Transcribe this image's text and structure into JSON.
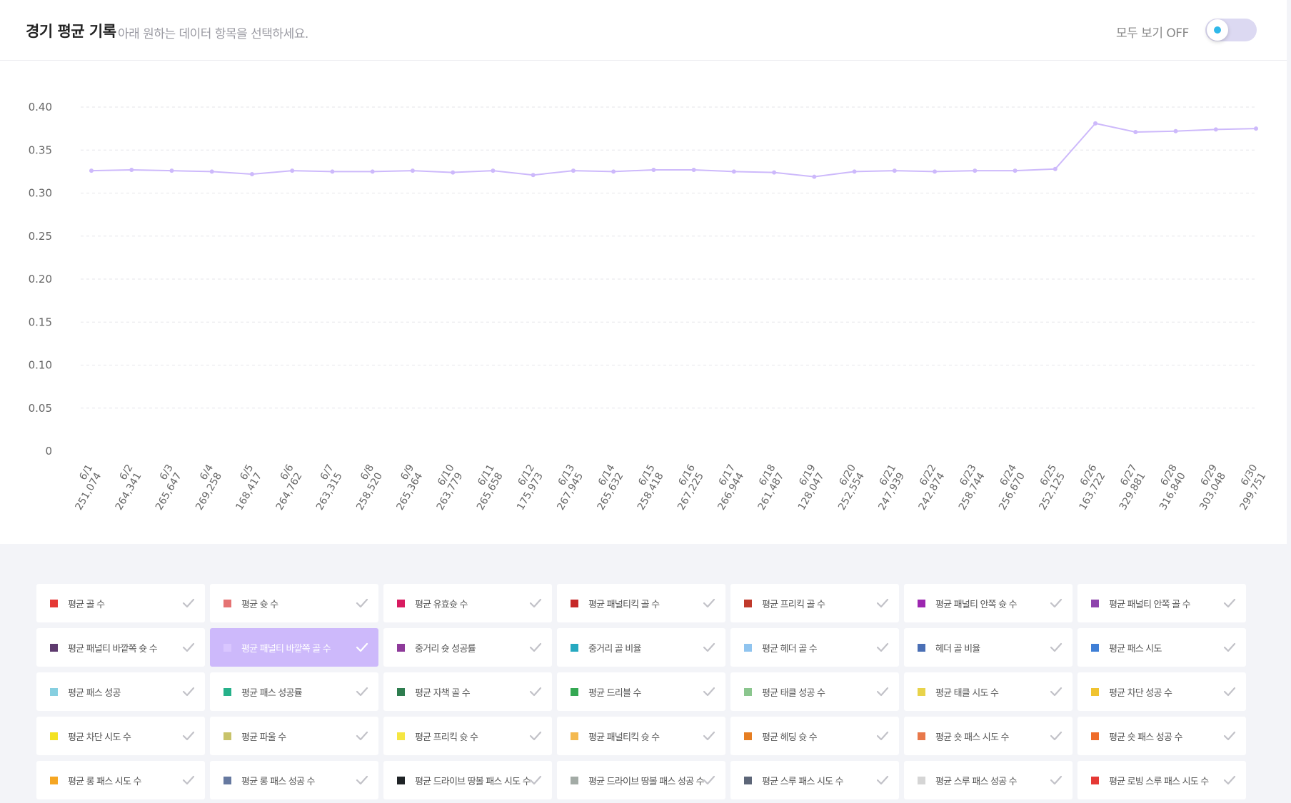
{
  "header": {
    "title": "경기 평균 기록",
    "subtitle": "아래 원하는 데이터 항목을 선택하세요.",
    "toggle_label": "모두 보기 OFF",
    "toggle_on": false
  },
  "chart_data": {
    "type": "line",
    "ylim": [
      0,
      0.4
    ],
    "yticks": [
      0,
      0.05,
      0.1,
      0.15,
      0.2,
      0.25,
      0.3,
      0.35,
      0.4
    ],
    "ytick_labels": [
      "0",
      "0.05",
      "0.10",
      "0.15",
      "0.20",
      "0.25",
      "0.30",
      "0.35",
      "0.40"
    ],
    "grid": true,
    "categories": [
      {
        "date": "6/1",
        "count": "251,074"
      },
      {
        "date": "6/2",
        "count": "264,341"
      },
      {
        "date": "6/3",
        "count": "265,647"
      },
      {
        "date": "6/4",
        "count": "269,258"
      },
      {
        "date": "6/5",
        "count": "168,417"
      },
      {
        "date": "6/6",
        "count": "264,762"
      },
      {
        "date": "6/7",
        "count": "263,315"
      },
      {
        "date": "6/8",
        "count": "258,520"
      },
      {
        "date": "6/9",
        "count": "265,364"
      },
      {
        "date": "6/10",
        "count": "263,779"
      },
      {
        "date": "6/11",
        "count": "265,658"
      },
      {
        "date": "6/12",
        "count": "175,973"
      },
      {
        "date": "6/13",
        "count": "267,945"
      },
      {
        "date": "6/14",
        "count": "265,632"
      },
      {
        "date": "6/15",
        "count": "258,418"
      },
      {
        "date": "6/16",
        "count": "267,225"
      },
      {
        "date": "6/17",
        "count": "266,944"
      },
      {
        "date": "6/18",
        "count": "261,487"
      },
      {
        "date": "6/19",
        "count": "128,047"
      },
      {
        "date": "6/20",
        "count": "252,554"
      },
      {
        "date": "6/21",
        "count": "247,939"
      },
      {
        "date": "6/22",
        "count": "242,874"
      },
      {
        "date": "6/23",
        "count": "258,744"
      },
      {
        "date": "6/24",
        "count": "256,670"
      },
      {
        "date": "6/25",
        "count": "252,125"
      },
      {
        "date": "6/26",
        "count": "163,722"
      },
      {
        "date": "6/27",
        "count": "329,881"
      },
      {
        "date": "6/28",
        "count": "316,840"
      },
      {
        "date": "6/29",
        "count": "303,048"
      },
      {
        "date": "6/30",
        "count": "299,751"
      }
    ],
    "series": [
      {
        "color": "#cdb9fb",
        "values": [
          0.326,
          0.327,
          0.326,
          0.325,
          0.322,
          0.326,
          0.325,
          0.325,
          0.326,
          0.324,
          0.326,
          0.321,
          0.326,
          0.325,
          0.327,
          0.327,
          0.325,
          0.324,
          0.319,
          0.325,
          0.326,
          0.325,
          0.326,
          0.326,
          0.328,
          0.381,
          0.371,
          0.372,
          0.374,
          0.375
        ]
      }
    ]
  },
  "legend": [
    {
      "label": "평균 골 수",
      "color": "#e53935",
      "selected": false
    },
    {
      "label": "평균 슛 수",
      "color": "#e57373",
      "selected": false
    },
    {
      "label": "평균 유효슛 수",
      "color": "#d81b60",
      "selected": false
    },
    {
      "label": "평균 패널티킥 골 수",
      "color": "#c62828",
      "selected": false
    },
    {
      "label": "평균 프리킥 골 수",
      "color": "#c0392b",
      "selected": false
    },
    {
      "label": "평균 패널티 안쪽 슛 수",
      "color": "#9c27b0",
      "selected": false
    },
    {
      "label": "평균 패널티 안쪽 골 수",
      "color": "#8e44ad",
      "selected": false
    },
    {
      "label": "평균 패널티 바깥쪽 슛 수",
      "color": "#5e3a6e",
      "selected": false
    },
    {
      "label": "평균 패널티 바깥쪽 골 수",
      "color": "#cdb9fb",
      "selected": true
    },
    {
      "label": "중거리 슛 성공률",
      "color": "#8e3a9a",
      "selected": false
    },
    {
      "label": "중거리 골 비율",
      "color": "#26a9c0",
      "selected": false
    },
    {
      "label": "평균 헤더 골 수",
      "color": "#90c4ef",
      "selected": false
    },
    {
      "label": "헤더 골 비율",
      "color": "#4a6fb5",
      "selected": false
    },
    {
      "label": "평균 패스 시도",
      "color": "#3f7fd6",
      "selected": false
    },
    {
      "label": "평균 패스 성공",
      "color": "#86cfe0",
      "selected": false
    },
    {
      "label": "평균 패스 성공률",
      "color": "#26b18a",
      "selected": false
    },
    {
      "label": "평균 자책 골 수",
      "color": "#2e7d4f",
      "selected": false
    },
    {
      "label": "평균 드리블 수",
      "color": "#34a853",
      "selected": false
    },
    {
      "label": "평균 태클 성공 수",
      "color": "#8bc68e",
      "selected": false
    },
    {
      "label": "평균 태클 시도 수",
      "color": "#e8d34a",
      "selected": false
    },
    {
      "label": "평균 차단 성공 수",
      "color": "#f0c330",
      "selected": false
    },
    {
      "label": "평균 차단 시도 수",
      "color": "#f3e221",
      "selected": false
    },
    {
      "label": "평균 파울 수",
      "color": "#c8c36a",
      "selected": false
    },
    {
      "label": "평균 프리킥 슛 수",
      "color": "#f5e642",
      "selected": false
    },
    {
      "label": "평균 패널티킥 슛 수",
      "color": "#f4b94f",
      "selected": false
    },
    {
      "label": "평균 헤딩 슛 수",
      "color": "#e67e22",
      "selected": false
    },
    {
      "label": "평균 숏 패스 시도 수",
      "color": "#e8784a",
      "selected": false
    },
    {
      "label": "평균 숏 패스 성공 수",
      "color": "#ef6c2a",
      "selected": false
    },
    {
      "label": "평균 롱 패스 시도 수",
      "color": "#f5a623",
      "selected": false
    },
    {
      "label": "평균 롱 패스 성공 수",
      "color": "#6679a0",
      "selected": false
    },
    {
      "label": "평균 드라이브 땅볼 패스 시도 수",
      "color": "#1f2326",
      "selected": false
    },
    {
      "label": "평균 드라이브 땅볼 패스 성공 수",
      "color": "#a3aba6",
      "selected": false
    },
    {
      "label": "평균 스루 패스 시도 수",
      "color": "#5d6678",
      "selected": false
    },
    {
      "label": "평균 스루 패스 성공 수",
      "color": "#d5d5d5",
      "selected": false
    },
    {
      "label": "평균 로빙 스루 패스 시도 수",
      "color": "#e53935",
      "selected": false
    }
  ]
}
